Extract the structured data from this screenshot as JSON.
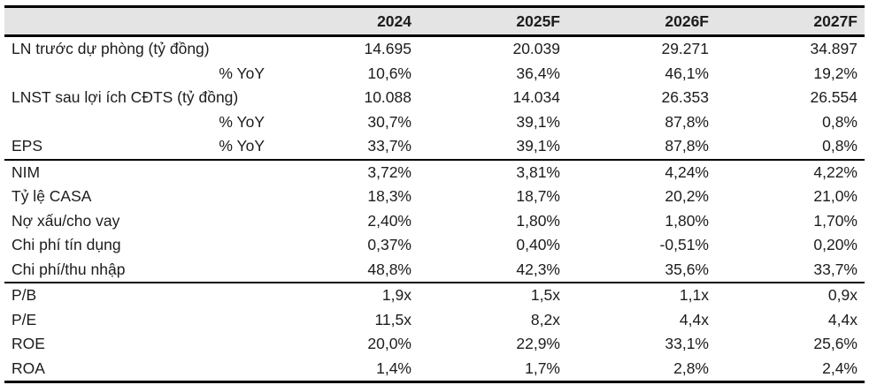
{
  "colors": {
    "header_bg": "#e4e4e4",
    "border": "#000000",
    "text": "#1c1c1c",
    "background": "#ffffff"
  },
  "table": {
    "header": {
      "cols": [
        "2024",
        "2025F",
        "2026F",
        "2027F"
      ]
    },
    "rows": [
      {
        "label": "LN trước dự phòng (tỷ đồng)",
        "sublabel": "",
        "values": [
          "14.695",
          "20.039",
          "29.271",
          "34.897"
        ]
      },
      {
        "label": "",
        "sublabel": "% YoY",
        "values": [
          "10,6%",
          "36,4%",
          "46,1%",
          "19,2%"
        ]
      },
      {
        "label": "LNST sau lợi ích CĐTS (tỷ đồng)",
        "sublabel": "",
        "values": [
          "10.088",
          "14.034",
          "26.353",
          "26.554"
        ]
      },
      {
        "label": "",
        "sublabel": "% YoY",
        "values": [
          "30,7%",
          "39,1%",
          "87,8%",
          "0,8%"
        ]
      },
      {
        "label": "EPS",
        "sublabel": "% YoY",
        "values": [
          "33,7%",
          "39,1%",
          "87,8%",
          "0,8%"
        ]
      },
      {
        "label": "NIM",
        "sublabel": "",
        "values": [
          "3,72%",
          "3,81%",
          "4,24%",
          "4,22%"
        ]
      },
      {
        "label": "Tỷ lệ CASA",
        "sublabel": "",
        "values": [
          "18,3%",
          "18,7%",
          "20,2%",
          "21,0%"
        ]
      },
      {
        "label": "Nợ xấu/cho vay",
        "sublabel": "",
        "values": [
          "2,40%",
          "1,80%",
          "1,80%",
          "1,70%"
        ]
      },
      {
        "label": "Chi phí tín dụng",
        "sublabel": "",
        "values": [
          "0,37%",
          "0,40%",
          "-0,51%",
          "0,20%"
        ]
      },
      {
        "label": "Chi phí/thu nhập",
        "sublabel": "",
        "values": [
          "48,8%",
          "42,3%",
          "35,6%",
          "33,7%"
        ]
      },
      {
        "label": "P/B",
        "sublabel": "",
        "values": [
          "1,9x",
          "1,5x",
          "1,1x",
          "0,9x"
        ]
      },
      {
        "label": "P/E",
        "sublabel": "",
        "values": [
          "11,5x",
          "8,2x",
          "4,4x",
          "4,4x"
        ]
      },
      {
        "label": "ROE",
        "sublabel": "",
        "values": [
          "20,0%",
          "22,9%",
          "33,1%",
          "25,6%"
        ]
      },
      {
        "label": "ROA",
        "sublabel": "",
        "values": [
          "1,4%",
          "1,7%",
          "2,8%",
          "2,4%"
        ]
      }
    ]
  }
}
